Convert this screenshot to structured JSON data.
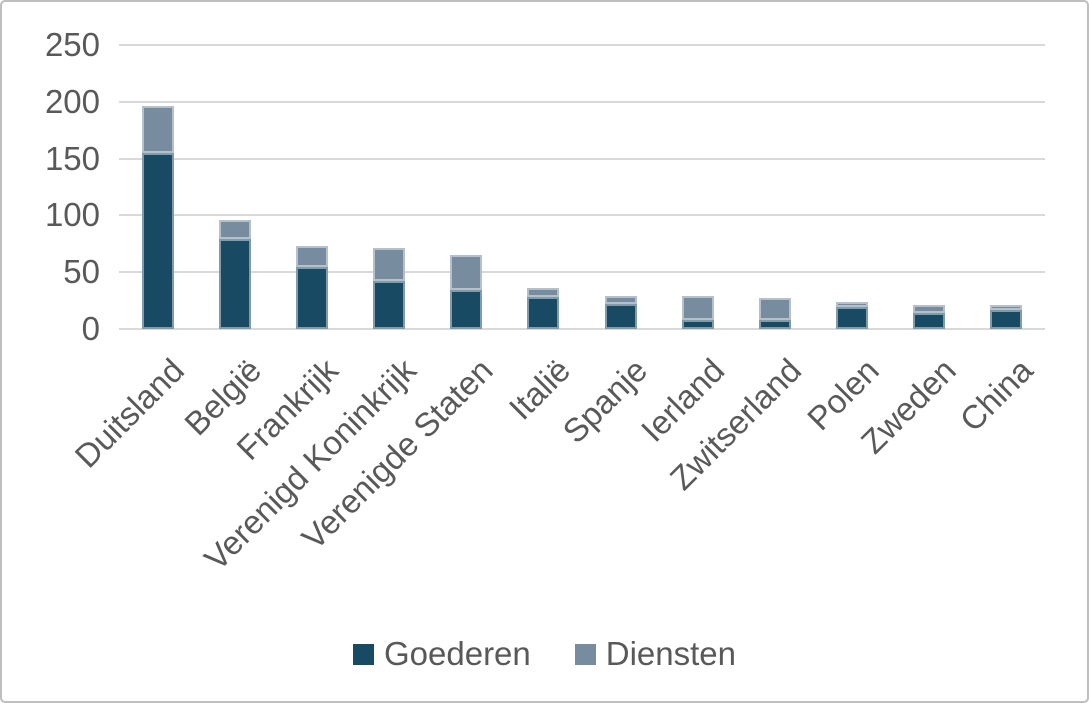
{
  "chart_data": {
    "type": "bar",
    "stacked": true,
    "title": "",
    "xlabel": "",
    "ylabel": "",
    "ylim": [
      0,
      250
    ],
    "yticks": [
      0,
      50,
      100,
      150,
      200,
      250
    ],
    "grid": "horizontal",
    "legend_position": "bottom-center",
    "categories": [
      "Duitsland",
      "België",
      "Frankrijk",
      "Verenigd Koninkrijk",
      "Verenigde Staten",
      "Italië",
      "Spanje",
      "Ierland",
      "Zwitserland",
      "Polen",
      "Zweden",
      "China"
    ],
    "series": [
      {
        "name": "Goederen",
        "color": "#194a63",
        "values": [
          155,
          79,
          55,
          42,
          34,
          28,
          22,
          8,
          8,
          19,
          14,
          17
        ]
      },
      {
        "name": "Diensten",
        "color": "#788ca0",
        "values": [
          41,
          17,
          18,
          29,
          31,
          8,
          7,
          21,
          19,
          5,
          7,
          4
        ]
      }
    ],
    "colors": {
      "gridline": "#d9d9d9",
      "axis_text": "#595959",
      "chart_border": "#bfbfbf",
      "background": "#ffffff"
    }
  }
}
